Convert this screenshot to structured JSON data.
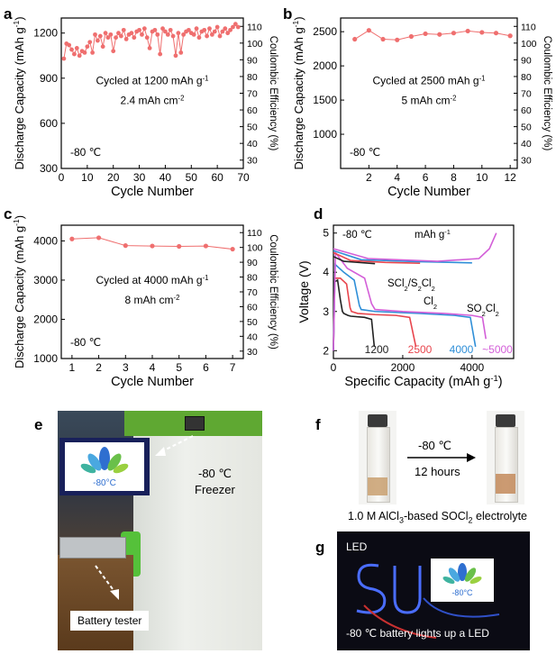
{
  "figure": {
    "panel_labels": {
      "a": "a",
      "b": "b",
      "c": "c",
      "d": "d",
      "e": "e",
      "f": "f",
      "g": "g"
    },
    "panel_e": {
      "temp_label": "-80 ℃",
      "freezer_label": "Freezer",
      "screen_label": "-80°C",
      "tester_label": "Battery tester"
    },
    "panel_f": {
      "arrow_temp": "-80 ℃",
      "arrow_time": "12 hours",
      "caption_prefix": "1.0 M AlCl",
      "caption_sub1": "3",
      "caption_mid": "-based SOCl",
      "caption_sub2": "2",
      "caption_suffix": " electrolyte"
    },
    "panel_g": {
      "led_label": "LED",
      "screen_label": "-80°C",
      "caption": "-80 ℃ battery lights up a LED"
    },
    "colors": {
      "series": "#ef6f6f",
      "black": "#222222",
      "red": "#e8454d",
      "blue": "#2f8fd8",
      "magenta": "#d35fd8",
      "purple": "#8f5fe0"
    }
  },
  "chart_data": [
    {
      "id": "a",
      "type": "scatter",
      "xlabel": "Cycle Number",
      "ylabel_left": "Discharge Capacity (mAh g",
      "ylabel_left_sup": "-1",
      "ylabel_left_end": ")",
      "ylabel_right": "Coulombic Efficiency (%)",
      "xlim": [
        0,
        70
      ],
      "ylim": [
        300,
        1300
      ],
      "y2lim": [
        25,
        115
      ],
      "xticks": [
        0,
        10,
        20,
        30,
        40,
        50,
        60,
        70
      ],
      "yticks": [
        300,
        600,
        900,
        1200
      ],
      "y2ticks": [
        30,
        40,
        50,
        60,
        70,
        80,
        90,
        100,
        110
      ],
      "annotation1": "Cycled at 1200 mAh g",
      "annotation1_sup": "-1",
      "annotation2": "2.4 mAh cm",
      "annotation2_sup": "-2",
      "temp_label": "-80 ℃",
      "x": [
        1,
        2,
        3,
        4,
        5,
        6,
        7,
        8,
        9,
        10,
        11,
        12,
        13,
        14,
        15,
        16,
        17,
        18,
        19,
        20,
        21,
        22,
        23,
        24,
        25,
        26,
        27,
        28,
        29,
        30,
        31,
        32,
        33,
        34,
        35,
        36,
        37,
        38,
        39,
        40,
        41,
        42,
        43,
        44,
        45,
        46,
        47,
        48,
        49,
        50,
        51,
        52,
        53,
        54,
        55,
        56,
        57,
        58,
        59,
        60,
        61,
        62,
        63,
        64,
        65,
        66,
        67,
        68
      ],
      "values": [
        1030,
        1130,
        1120,
        1090,
        1060,
        1100,
        1050,
        1080,
        1070,
        1110,
        1140,
        1070,
        1190,
        1150,
        1180,
        1110,
        1200,
        1170,
        1190,
        1080,
        1170,
        1200,
        1180,
        1220,
        1160,
        1190,
        1200,
        1170,
        1210,
        1220,
        1190,
        1230,
        1170,
        1100,
        1210,
        1220,
        1190,
        1060,
        1230,
        1210,
        1190,
        1220,
        1180,
        1050,
        1200,
        1070,
        1190,
        1210,
        1220,
        1200,
        1190,
        1230,
        1170,
        1210,
        1220,
        1180,
        1230,
        1190,
        1210,
        1240,
        1180,
        1210,
        1230,
        1200,
        1220,
        1240,
        1260,
        1240
      ]
    },
    {
      "id": "b",
      "type": "line",
      "xlabel": "Cycle Number",
      "ylabel_left": "Discharge Capacity (mAh g",
      "ylabel_left_sup": "-1",
      "ylabel_left_end": ")",
      "ylabel_right": "Coulombic Efficiency (%)",
      "xlim": [
        0,
        12.5
      ],
      "ylim": [
        500,
        2700
      ],
      "y2lim": [
        25,
        115
      ],
      "xticks": [
        2,
        4,
        6,
        8,
        10,
        12
      ],
      "yticks": [
        1000,
        1500,
        2000,
        2500
      ],
      "y2ticks": [
        30,
        40,
        50,
        60,
        70,
        80,
        90,
        100,
        110
      ],
      "annotation1": "Cycled at 2500 mAh g",
      "annotation1_sup": "-1",
      "annotation2": "5 mAh cm",
      "annotation2_sup": "-2",
      "temp_label": "-80 ℃",
      "x": [
        1,
        2,
        3,
        4,
        5,
        6,
        7,
        8,
        9,
        10,
        11,
        12
      ],
      "values": [
        2390,
        2520,
        2390,
        2380,
        2430,
        2470,
        2460,
        2480,
        2510,
        2490,
        2480,
        2440
      ]
    },
    {
      "id": "c",
      "type": "line",
      "xlabel": "Cycle Number",
      "ylabel_left": "Discharge Capacity (mAh g",
      "ylabel_left_sup": "-1",
      "ylabel_left_end": ")",
      "ylabel_right": "Coulombic Efficiency (%)",
      "xlim": [
        0.6,
        7.4
      ],
      "ylim": [
        1000,
        4400
      ],
      "y2lim": [
        25,
        115
      ],
      "xticks": [
        1,
        2,
        3,
        4,
        5,
        6,
        7
      ],
      "yticks": [
        1000,
        2000,
        3000,
        4000
      ],
      "y2ticks": [
        30,
        40,
        50,
        60,
        70,
        80,
        90,
        100,
        110
      ],
      "annotation1": "Cycled at 4000 mAh g",
      "annotation1_sup": "-1",
      "annotation2": "8 mAh cm",
      "annotation2_sup": "-2",
      "temp_label": "-80 ℃",
      "x": [
        1,
        2,
        3,
        4,
        5,
        6,
        7
      ],
      "values": [
        4050,
        4080,
        3880,
        3870,
        3860,
        3870,
        3790
      ]
    },
    {
      "id": "d",
      "type": "line",
      "xlabel": "Specific Capacity (mAh g",
      "xlabel_sup": "-1",
      "xlabel_end": ")",
      "ylabel": "Voltage (V)",
      "xlim": [
        0,
        5200
      ],
      "ylim": [
        1.8,
        5.2
      ],
      "xticks": [
        0,
        2000,
        4000
      ],
      "yticks": [
        2,
        3,
        4,
        5
      ],
      "temp_label": "-80 ℃",
      "unit_label": "mAh g",
      "unit_sup": "-1",
      "annotations": {
        "scl_a": "SCl",
        "scl_b": "2",
        "scl_c": "/S",
        "scl_d": "2",
        "scl_e": "Cl",
        "scl_f": "2",
        "cl2_a": "Cl",
        "cl2_b": "2",
        "so_a": "SO",
        "so_b": "2",
        "so_c": "Cl",
        "so_d": "2"
      },
      "series": [
        {
          "name": "1200",
          "color": "#222222",
          "x": [
            0,
            30,
            120,
            200,
            260,
            300,
            420,
            500,
            900,
            1100,
            1180
          ],
          "y": [
            2.0,
            3.75,
            3.8,
            3.3,
            3.0,
            2.95,
            2.9,
            2.88,
            2.85,
            2.8,
            2.1
          ]
        },
        {
          "name": "2500",
          "color": "#e8454d",
          "x": [
            0,
            40,
            200,
            380,
            480,
            520,
            700,
            1200,
            1800,
            2200,
            2380
          ],
          "y": [
            2.0,
            3.85,
            3.85,
            3.7,
            3.1,
            3.0,
            2.95,
            2.92,
            2.9,
            2.85,
            2.1
          ]
        },
        {
          "name": "4000",
          "color": "#2f8fd8",
          "x": [
            0,
            50,
            300,
            600,
            750,
            800,
            1200,
            2500,
            3500,
            3950,
            4100
          ],
          "y": [
            2.0,
            4.2,
            4.0,
            3.8,
            3.15,
            3.05,
            3.0,
            2.95,
            2.9,
            2.85,
            2.1
          ]
        },
        {
          "name": "~5000",
          "color": "#d35fd8",
          "x": [
            0,
            60,
            400,
            900,
            1100,
            1200,
            2000,
            3200,
            4000,
            4300,
            4400
          ],
          "y": [
            2.0,
            4.5,
            4.1,
            3.85,
            3.2,
            3.05,
            3.0,
            2.95,
            2.9,
            2.85,
            2.3
          ]
        },
        {
          "name": "charge-1200",
          "color": "#222222",
          "x": [
            0,
            300,
            900,
            1200
          ],
          "y": [
            4.4,
            4.28,
            4.24,
            4.22
          ]
        },
        {
          "name": "charge-2500",
          "color": "#e8454d",
          "x": [
            0,
            500,
            1500,
            2500
          ],
          "y": [
            4.5,
            4.3,
            4.25,
            4.23
          ]
        },
        {
          "name": "charge-4000",
          "color": "#2f8fd8",
          "x": [
            0,
            800,
            2400,
            4000
          ],
          "y": [
            4.55,
            4.32,
            4.27,
            4.24
          ]
        },
        {
          "name": "charge-5000",
          "color": "#d35fd8",
          "x": [
            0,
            1000,
            3000,
            4200,
            4500,
            4700
          ],
          "y": [
            4.6,
            4.35,
            4.28,
            4.35,
            4.6,
            5.0
          ]
        }
      ]
    }
  ]
}
